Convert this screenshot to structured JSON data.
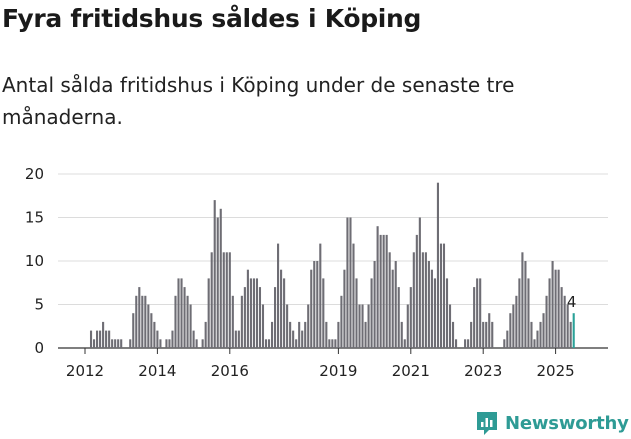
{
  "header": {
    "title": "Fyra fritidshus såldes i Köping",
    "subtitle": "Antal sålda fritidshus i Köping under de senaste tre månaderna."
  },
  "brand": {
    "name": "Newsworthy",
    "icon": "newsworthy-chart-logo-icon",
    "color": "#2e9b95"
  },
  "chart_data": {
    "type": "bar",
    "title": "",
    "xlabel": "",
    "ylabel": "",
    "ylim": [
      0,
      20
    ],
    "yticks": [
      0,
      5,
      10,
      15,
      20
    ],
    "xticks": [
      {
        "label": "2012",
        "year": 2012.0
      },
      {
        "label": "2014",
        "year": 2014.0
      },
      {
        "label": "2016",
        "year": 2016.0
      },
      {
        "label": "2019",
        "year": 2019.0
      },
      {
        "label": "2021",
        "year": 2021.0
      },
      {
        "label": "2023",
        "year": 2023.0
      },
      {
        "label": "2025",
        "year": 2025.0
      }
    ],
    "grid": true,
    "bar_color": "#6e6d74",
    "highlight_color": "#2aa198",
    "start": "2012-01",
    "last_label": "4",
    "values": [
      0,
      0,
      2,
      1,
      2,
      2,
      3,
      2,
      2,
      1,
      1,
      1,
      1,
      0,
      0,
      1,
      4,
      6,
      7,
      6,
      6,
      5,
      4,
      3,
      2,
      1,
      0,
      1,
      1,
      2,
      6,
      8,
      8,
      7,
      6,
      5,
      2,
      1,
      0,
      1,
      3,
      8,
      11,
      17,
      15,
      16,
      11,
      11,
      11,
      6,
      2,
      2,
      6,
      7,
      9,
      8,
      8,
      8,
      7,
      5,
      1,
      1,
      3,
      7,
      12,
      9,
      8,
      5,
      3,
      2,
      1,
      3,
      2,
      3,
      5,
      9,
      10,
      10,
      12,
      8,
      3,
      1,
      1,
      1,
      3,
      6,
      9,
      15,
      15,
      12,
      8,
      5,
      5,
      3,
      5,
      8,
      10,
      14,
      13,
      13,
      13,
      11,
      9,
      10,
      7,
      3,
      1,
      5,
      7,
      11,
      13,
      15,
      11,
      11,
      10,
      9,
      8,
      19,
      12,
      12,
      8,
      5,
      3,
      1,
      0,
      0,
      1,
      1,
      3,
      7,
      8,
      8,
      3,
      3,
      4,
      3,
      0,
      0,
      0,
      1,
      2,
      4,
      5,
      6,
      8,
      11,
      10,
      8,
      3,
      1,
      2,
      3,
      4,
      6,
      8,
      10,
      9,
      9,
      7,
      6,
      5,
      3,
      4
    ]
  }
}
